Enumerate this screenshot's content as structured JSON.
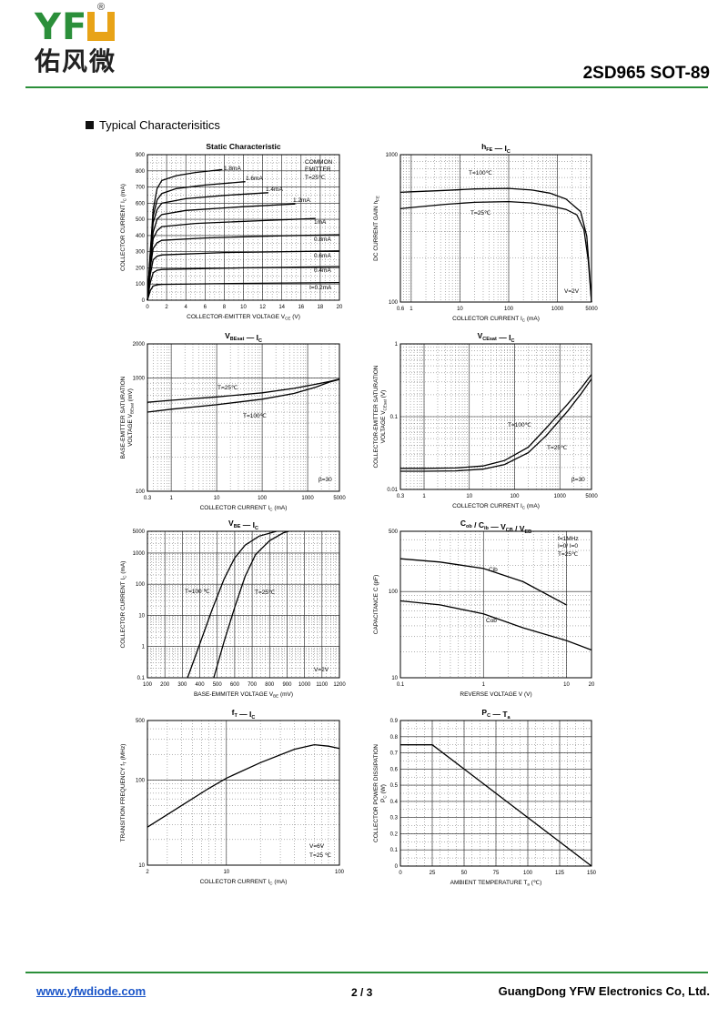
{
  "header": {
    "logo_text": "YFW",
    "logo_cn": "佑风微",
    "logo_reg": "®",
    "part_number": "2SD965  SOT-89",
    "section_title": "Typical  Characterisitics"
  },
  "footer": {
    "website": "www.yfwdiode.com",
    "page": "2 / 3",
    "company": "GuangDong YFW Electronics Co, Ltd."
  },
  "colors": {
    "brand_green": "#2b8f3a",
    "brand_orange": "#e8a317",
    "link_blue": "#1a55c8"
  },
  "chart_data": [
    {
      "id": "c1",
      "type": "line",
      "title": "Static Characteristic",
      "xlabel": "COLLECTOR-EMITTER VOLTAGE  V",
      "xlabel_sub": "CE",
      "xlabel_unit": "(V)",
      "ylabel": "COLLECTOR CURRENT  I",
      "ylabel_sub": "C",
      "ylabel_unit": "(mA)",
      "xscale": "linear",
      "yscale": "linear",
      "xlim": [
        0,
        20
      ],
      "ylim": [
        0,
        900
      ],
      "xticks": [
        0,
        2,
        4,
        6,
        8,
        10,
        12,
        14,
        16,
        18,
        20
      ],
      "yticks": [
        0,
        100,
        200,
        300,
        400,
        500,
        600,
        700,
        800,
        900
      ],
      "annotation": [
        "COMMON",
        "EMITTER",
        "T=25℃"
      ],
      "series": [
        {
          "name": "1.8mA",
          "points": [
            [
              0,
              0
            ],
            [
              0.3,
              300
            ],
            [
              0.6,
              560
            ],
            [
              1,
              690
            ],
            [
              1.5,
              740
            ],
            [
              3,
              770
            ],
            [
              5,
              790
            ],
            [
              7.8,
              808
            ]
          ]
        },
        {
          "name": "1.6mA",
          "points": [
            [
              0,
              0
            ],
            [
              0.3,
              300
            ],
            [
              0.6,
              520
            ],
            [
              1,
              620
            ],
            [
              1.5,
              660
            ],
            [
              3,
              690
            ],
            [
              6,
              712
            ],
            [
              10.2,
              733
            ]
          ]
        },
        {
          "name": "1.4mA",
          "points": [
            [
              0,
              0
            ],
            [
              0.3,
              280
            ],
            [
              0.6,
              480
            ],
            [
              1,
              560
            ],
            [
              1.5,
              600
            ],
            [
              4,
              628
            ],
            [
              8,
              648
            ],
            [
              12.6,
              665
            ]
          ]
        },
        {
          "name": "1.2mA",
          "points": [
            [
              0,
              0
            ],
            [
              0.3,
              260
            ],
            [
              0.6,
              420
            ],
            [
              1,
              500
            ],
            [
              1.5,
              530
            ],
            [
              4,
              555
            ],
            [
              10,
              578
            ],
            [
              15.4,
              595
            ]
          ]
        },
        {
          "name": "1mA",
          "points": [
            [
              0,
              0
            ],
            [
              0.3,
              230
            ],
            [
              0.6,
              380
            ],
            [
              1,
              430
            ],
            [
              1.5,
              455
            ],
            [
              5,
              475
            ],
            [
              12,
              492
            ],
            [
              17.5,
              505
            ]
          ]
        },
        {
          "name": "0.8mA",
          "points": [
            [
              0,
              0
            ],
            [
              0.3,
              200
            ],
            [
              0.6,
              320
            ],
            [
              1,
              355
            ],
            [
              1.5,
              370
            ],
            [
              6,
              385
            ],
            [
              14,
              398
            ],
            [
              20,
              405
            ]
          ]
        },
        {
          "name": "0.6mA",
          "points": [
            [
              0,
              0
            ],
            [
              0.3,
              160
            ],
            [
              0.6,
              250
            ],
            [
              1,
              272
            ],
            [
              1.5,
              280
            ],
            [
              8,
              295
            ],
            [
              20,
              305
            ]
          ]
        },
        {
          "name": "0.4mA",
          "points": [
            [
              0,
              0
            ],
            [
              0.3,
              110
            ],
            [
              0.6,
              170
            ],
            [
              1,
              185
            ],
            [
              1.5,
              190
            ],
            [
              10,
              200
            ],
            [
              20,
              208
            ]
          ]
        },
        {
          "name": "I=0.2mA",
          "points": [
            [
              0,
              0
            ],
            [
              0.3,
              60
            ],
            [
              0.6,
              88
            ],
            [
              1,
              95
            ],
            [
              1.5,
              98
            ],
            [
              10,
              104
            ],
            [
              20,
              109
            ]
          ]
        }
      ]
    },
    {
      "id": "c2",
      "type": "line",
      "title": "h",
      "title_sub": "FE",
      "title_2": "I",
      "title_2_sub": "C",
      "xlabel": "COLLECTOR CURRENT  I",
      "xlabel_sub": "C",
      "xlabel_unit": "(mA)",
      "ylabel": "DC CURRENT GAIN  h",
      "ylabel_sub": "FE",
      "ylabel_unit": "",
      "xscale": "log",
      "yscale": "log",
      "xlim": [
        0.6,
        5000
      ],
      "ylim": [
        100,
        1000
      ],
      "xticks": [
        0.6,
        1,
        10,
        100,
        1000,
        5000
      ],
      "yticks": [
        100,
        1000
      ],
      "annotation": [
        "V=2V"
      ],
      "series": [
        {
          "name": "T=100℃",
          "points": [
            [
              0.6,
              555
            ],
            [
              1,
              560
            ],
            [
              5,
              572
            ],
            [
              20,
              585
            ],
            [
              100,
              590
            ],
            [
              300,
              575
            ],
            [
              700,
              548
            ],
            [
              1500,
              500
            ],
            [
              3000,
              410
            ],
            [
              4000,
              280
            ],
            [
              4600,
              150
            ],
            [
              5000,
              100
            ]
          ]
        },
        {
          "name": "T=25℃",
          "points": [
            [
              0.6,
              430
            ],
            [
              1,
              438
            ],
            [
              5,
              460
            ],
            [
              20,
              475
            ],
            [
              100,
              480
            ],
            [
              300,
              470
            ],
            [
              700,
              450
            ],
            [
              1500,
              425
            ],
            [
              2500,
              390
            ],
            [
              3500,
              310
            ],
            [
              4300,
              190
            ],
            [
              5000,
              100
            ]
          ]
        }
      ]
    },
    {
      "id": "c3",
      "type": "line",
      "title": "V",
      "title_sub": "BEsat",
      "title_2": "I",
      "title_2_sub": "C",
      "xlabel": "COLLECTOR CURRENT  I",
      "xlabel_sub": "C",
      "xlabel_unit": "(mA)",
      "ylabel": "BASE-EMITTER SATURATION",
      "ylabel_2": "VOLTAGE  V",
      "ylabel_sub": "BEsat",
      "ylabel_unit": "(mV)",
      "xscale": "log",
      "yscale": "log",
      "xlim": [
        0.3,
        5000
      ],
      "ylim": [
        100,
        2000
      ],
      "xticks": [
        0.3,
        1,
        10,
        100,
        1000,
        5000
      ],
      "yticks": [
        100,
        1000,
        2000
      ],
      "annotation": [
        "β=30"
      ],
      "series": [
        {
          "name": "T=25℃",
          "points": [
            [
              0.3,
              610
            ],
            [
              1,
              635
            ],
            [
              10,
              680
            ],
            [
              100,
              740
            ],
            [
              500,
              810
            ],
            [
              1500,
              880
            ],
            [
              3000,
              930
            ],
            [
              5000,
              980
            ]
          ]
        },
        {
          "name": "T=100℃",
          "points": [
            [
              0.3,
              500
            ],
            [
              1,
              530
            ],
            [
              10,
              580
            ],
            [
              100,
              650
            ],
            [
              500,
              730
            ],
            [
              1500,
              830
            ],
            [
              3000,
              920
            ],
            [
              5000,
              970
            ]
          ]
        }
      ]
    },
    {
      "id": "c4",
      "type": "line",
      "title": "V",
      "title_sub": "CEsat",
      "title_2": "I",
      "title_2_sub": "C",
      "xlabel": "COLLECTOR CURRENT  I",
      "xlabel_sub": "C",
      "xlabel_unit": "(mA)",
      "ylabel": "COLLECTOR-EMITTER SATURATION",
      "ylabel_2": "VOLTAGE  V",
      "ylabel_sub": "CEsat",
      "ylabel_unit": "(V)",
      "xscale": "log",
      "yscale": "log",
      "xlim": [
        0.3,
        5000
      ],
      "ylim": [
        0.01,
        1
      ],
      "xticks": [
        0.3,
        1,
        10,
        100,
        1000,
        5000
      ],
      "yticks": [
        0.01,
        0.1,
        1
      ],
      "annotation": [
        "β=30"
      ],
      "series": [
        {
          "name": "T=100℃",
          "points": [
            [
              0.3,
              0.0195
            ],
            [
              1,
              0.0195
            ],
            [
              5,
              0.0197
            ],
            [
              20,
              0.021
            ],
            [
              60,
              0.025
            ],
            [
              200,
              0.038
            ],
            [
              500,
              0.07
            ],
            [
              1500,
              0.15
            ],
            [
              3000,
              0.25
            ],
            [
              5000,
              0.38
            ]
          ]
        },
        {
          "name": "T=25℃",
          "points": [
            [
              0.3,
              0.0178
            ],
            [
              1,
              0.0178
            ],
            [
              5,
              0.018
            ],
            [
              20,
              0.019
            ],
            [
              60,
              0.022
            ],
            [
              200,
              0.032
            ],
            [
              500,
              0.055
            ],
            [
              1500,
              0.12
            ],
            [
              3000,
              0.21
            ],
            [
              5000,
              0.33
            ]
          ]
        }
      ]
    },
    {
      "id": "c5",
      "type": "line",
      "title": "V",
      "title_sub": "BE",
      "title_2": "I",
      "title_2_sub": "C",
      "xlabel": "BASE-EMMITER VOLTAGE  V",
      "xlabel_sub": "BE",
      "xlabel_unit": "(mV)",
      "ylabel": "COLLECTOR CURRENT  I",
      "ylabel_sub": "C",
      "ylabel_unit": "(mA)",
      "xscale": "linear",
      "yscale": "log",
      "xlim": [
        100,
        1200
      ],
      "ylim": [
        0.1,
        5000
      ],
      "xticks": [
        100,
        200,
        300,
        400,
        500,
        600,
        700,
        800,
        900,
        1000,
        1100,
        1200
      ],
      "yticks": [
        0.1,
        1,
        10,
        100,
        1000,
        5000
      ],
      "annotation": [
        "V=2V"
      ],
      "series": [
        {
          "name": "T=100 ℃",
          "points": [
            [
              330,
              0.1
            ],
            [
              400,
              1.2
            ],
            [
              470,
              15
            ],
            [
              540,
              150
            ],
            [
              600,
              700
            ],
            [
              660,
              1800
            ],
            [
              740,
              3500
            ],
            [
              840,
              5000
            ]
          ]
        },
        {
          "name": "T=25℃",
          "points": [
            [
              480,
              0.1
            ],
            [
              540,
              1.5
            ],
            [
              600,
              18
            ],
            [
              660,
              180
            ],
            [
              720,
              900
            ],
            [
              800,
              2500
            ],
            [
              880,
              4500
            ],
            [
              910,
              5000
            ]
          ]
        }
      ]
    },
    {
      "id": "c6",
      "type": "line",
      "title": "C",
      "title_sub": "ob",
      "title_mid": "/ C",
      "title_mid_sub": "ib",
      "title_2": "V",
      "title_2_sub": "CB",
      "title_3": "/ V",
      "title_3_sub": "EB",
      "xlabel": "REVERSE VOLTAGE  V",
      "xlabel_sub": "",
      "xlabel_unit": "(V)",
      "ylabel": "CAPACITANCE  C",
      "ylabel_sub": "",
      "ylabel_unit": "(pF)",
      "xscale": "log",
      "yscale": "log",
      "xlim": [
        0.1,
        20
      ],
      "ylim": [
        10,
        500
      ],
      "xticks": [
        0.1,
        1,
        10,
        20
      ],
      "yticks": [
        10,
        100,
        500
      ],
      "annotation": [
        "f=1MHz",
        "I=0/ I=0",
        "T=25℃"
      ],
      "series": [
        {
          "name": "Cib",
          "points": [
            [
              0.1,
              240
            ],
            [
              0.3,
              220
            ],
            [
              1,
              185
            ],
            [
              3,
              130
            ],
            [
              10,
              70
            ]
          ]
        },
        {
          "name": "Cob",
          "points": [
            [
              0.1,
              78
            ],
            [
              0.3,
              70
            ],
            [
              1,
              55
            ],
            [
              3,
              38
            ],
            [
              10,
              27
            ],
            [
              20,
              21
            ]
          ]
        }
      ]
    },
    {
      "id": "c7",
      "type": "line",
      "title": "f",
      "title_sub": "T",
      "title_2": "I",
      "title_2_sub": "C",
      "xlabel": "COLLECTOR CURRENT  I",
      "xlabel_sub": "C",
      "xlabel_unit": "(mA)",
      "ylabel": "TRANSITION FREQUENCY  f",
      "ylabel_sub": "T",
      "ylabel_unit": "(MHz)",
      "xscale": "log",
      "yscale": "log",
      "xlim": [
        2,
        100
      ],
      "ylim": [
        10,
        500
      ],
      "xticks": [
        2,
        10,
        100
      ],
      "yticks": [
        10,
        100,
        500
      ],
      "annotation": [
        "V=6V",
        "T=25 ℃"
      ],
      "series": [
        {
          "name": "fT",
          "points": [
            [
              2,
              28
            ],
            [
              4,
              50
            ],
            [
              7,
              80
            ],
            [
              10,
              105
            ],
            [
              20,
              160
            ],
            [
              40,
              230
            ],
            [
              60,
              260
            ],
            [
              80,
              250
            ],
            [
              100,
              235
            ]
          ]
        }
      ]
    },
    {
      "id": "c8",
      "type": "line",
      "title": "P",
      "title_sub": "C",
      "title_2": "T",
      "title_2_sub": "a",
      "xlabel": "AMBIENT TEMPERATURE  T",
      "xlabel_sub": "a",
      "xlabel_unit": "(℃)",
      "ylabel": "COLLECTOR POWER DISSIPATION",
      "ylabel_2": "P",
      "ylabel_sub": "C",
      "ylabel_unit": "(W)",
      "xscale": "linear",
      "yscale": "linear",
      "xlim": [
        0,
        150
      ],
      "ylim": [
        0,
        0.9
      ],
      "xticks": [
        0,
        25,
        50,
        75,
        100,
        125,
        150
      ],
      "yticks": [
        0.0,
        0.1,
        0.2,
        0.3,
        0.4,
        0.5,
        0.6,
        0.7,
        0.8,
        0.9
      ],
      "annotation": [],
      "series": [
        {
          "name": "PC",
          "points": [
            [
              0,
              0.75
            ],
            [
              25,
              0.75
            ],
            [
              150,
              0
            ]
          ]
        }
      ]
    }
  ]
}
